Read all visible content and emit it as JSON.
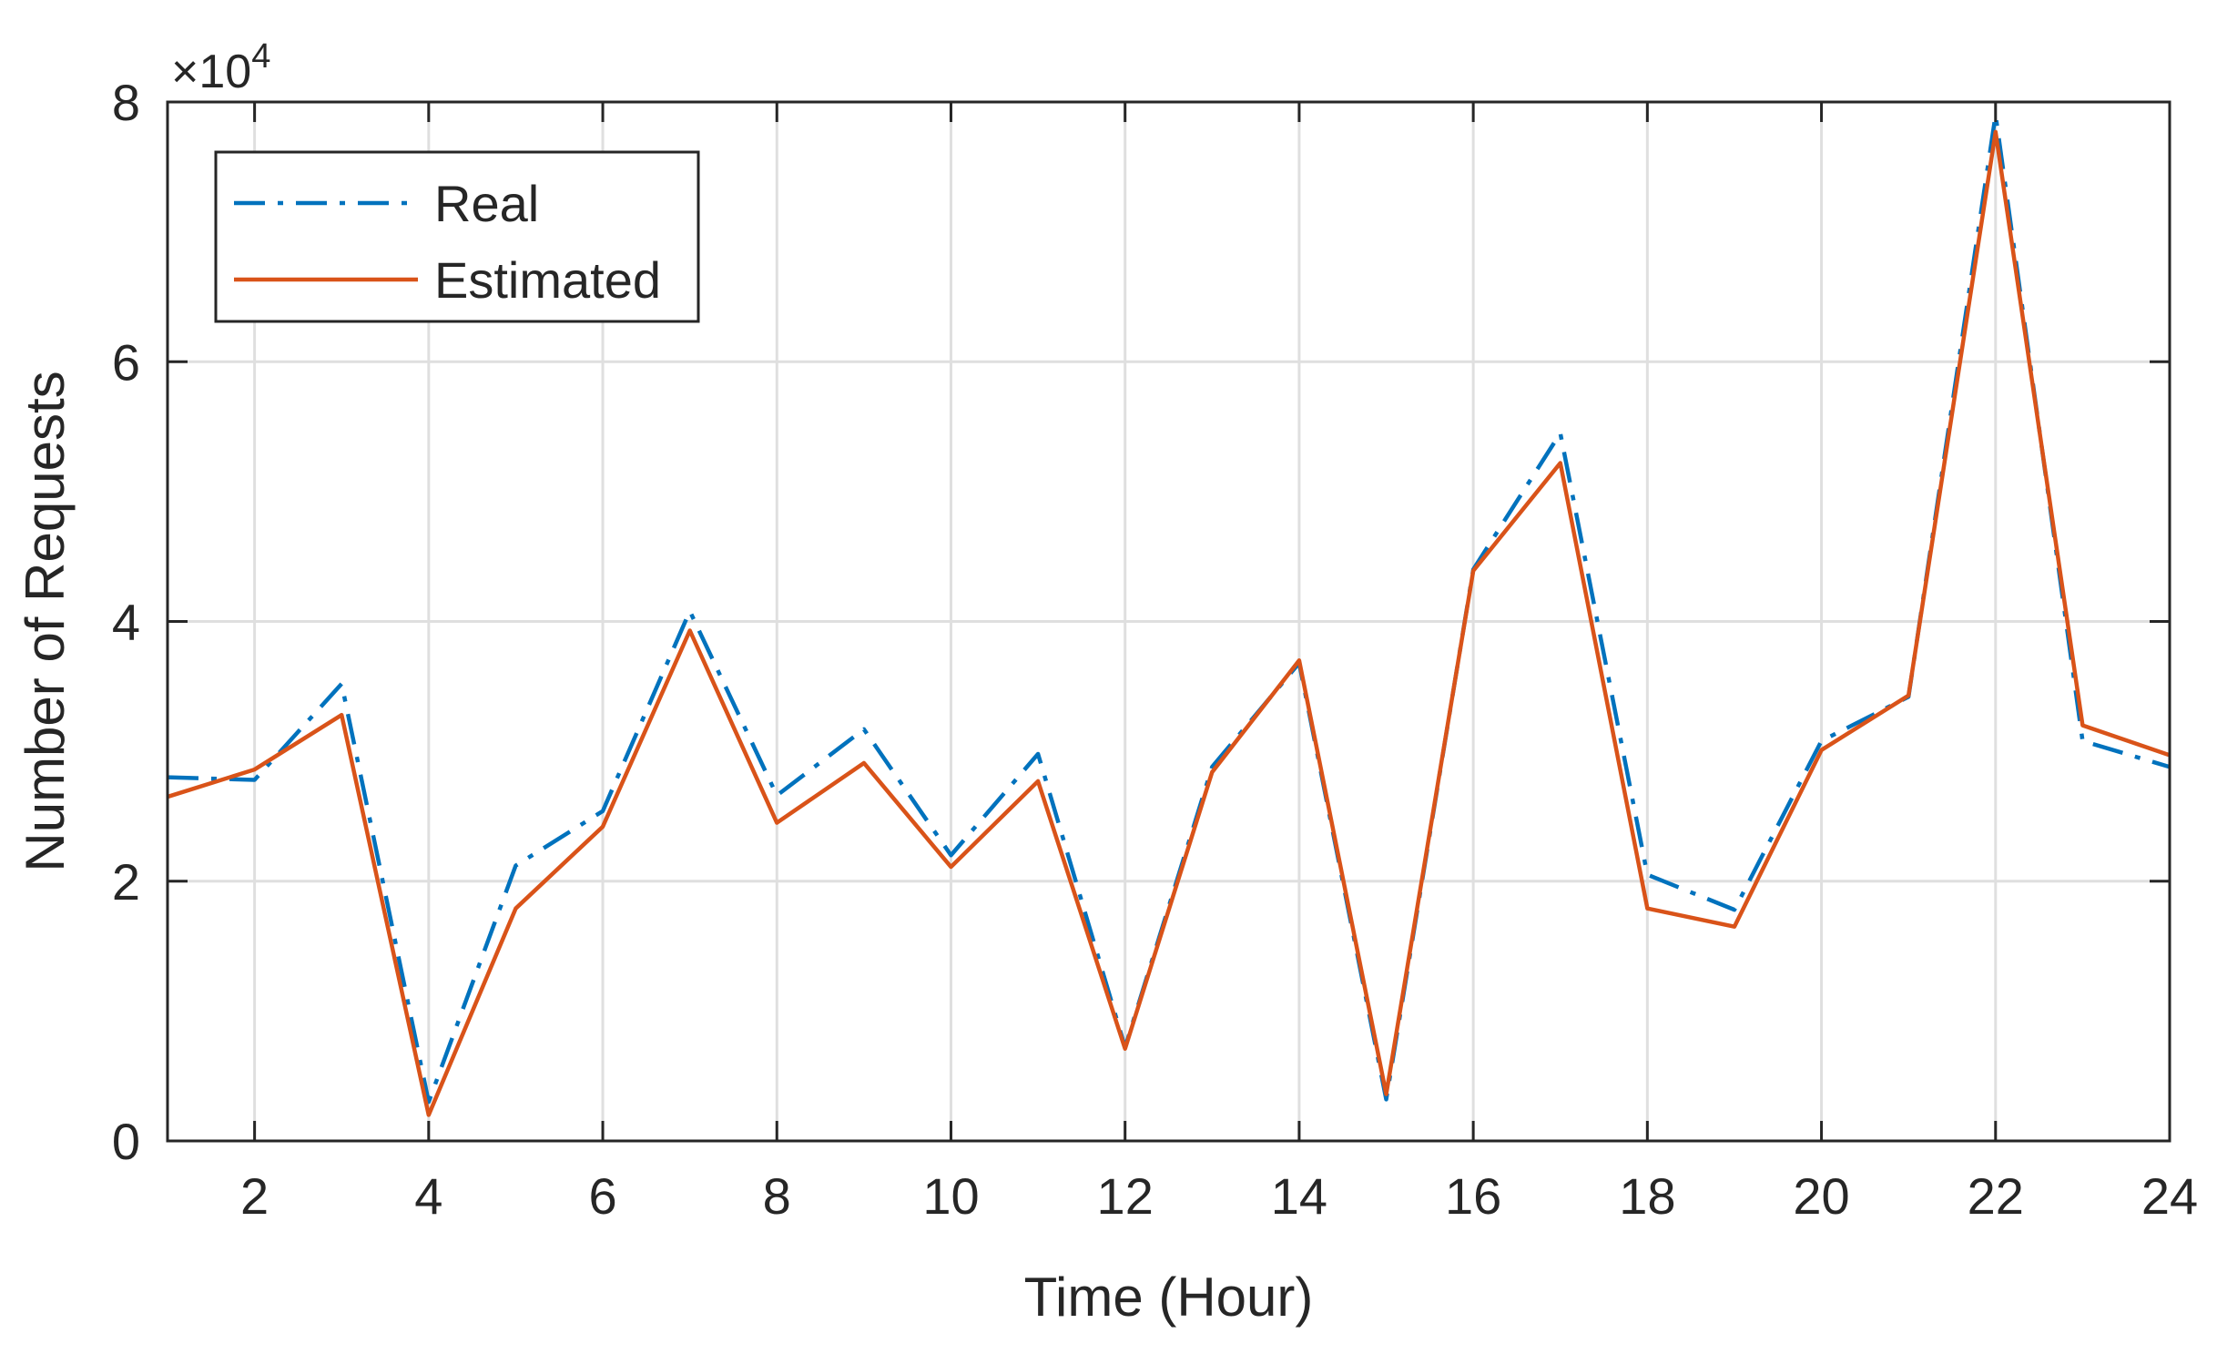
{
  "chart_data": {
    "type": "line",
    "title": "",
    "xlabel": "Time (Hour)",
    "ylabel": "Number of Requests",
    "y_exponent_label": {
      "base": "×10",
      "exponent": "4"
    },
    "xlim": [
      1,
      24
    ],
    "ylim": [
      0,
      8
    ],
    "y_scale_factor": 10000,
    "xticks": [
      2,
      4,
      6,
      8,
      10,
      12,
      14,
      16,
      18,
      20,
      22,
      24
    ],
    "yticks": [
      0,
      2,
      4,
      6,
      8
    ],
    "grid": true,
    "legend_position": "top-left",
    "x": [
      1,
      2,
      3,
      4,
      5,
      6,
      7,
      8,
      9,
      10,
      11,
      12,
      13,
      14,
      15,
      16,
      17,
      18,
      19,
      20,
      21,
      22,
      23,
      24
    ],
    "series": [
      {
        "name": "Real",
        "line_style": "dash-dot",
        "color": "#0072BD",
        "values": [
          2.8,
          2.78,
          3.52,
          0.3,
          2.12,
          2.54,
          4.08,
          2.66,
          3.17,
          2.2,
          2.98,
          0.72,
          2.88,
          3.68,
          0.32,
          4.4,
          5.45,
          2.05,
          1.78,
          3.08,
          3.42,
          7.9,
          3.08,
          2.88
        ]
      },
      {
        "name": "Estimated",
        "line_style": "solid",
        "color": "#D95319",
        "values": [
          2.65,
          2.86,
          3.28,
          0.2,
          1.79,
          2.42,
          3.93,
          2.45,
          2.91,
          2.11,
          2.77,
          0.71,
          2.84,
          3.7,
          0.36,
          4.39,
          5.22,
          1.79,
          1.65,
          3.01,
          3.43,
          7.77,
          3.2,
          2.97
        ]
      }
    ]
  }
}
